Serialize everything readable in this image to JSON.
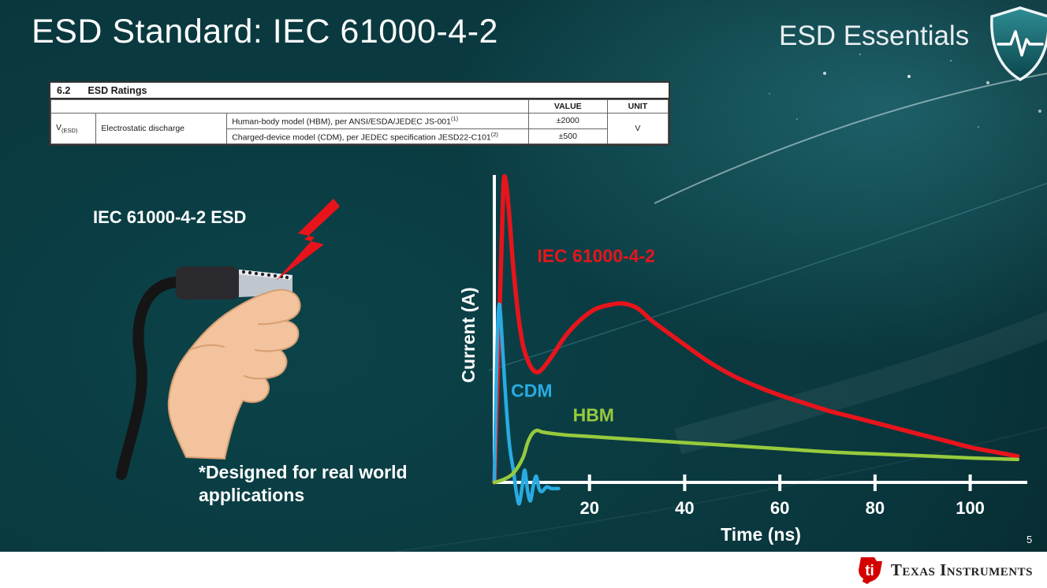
{
  "slide": {
    "title": "ESD Standard: IEC 61000-4-2",
    "brand": "ESD Essentials",
    "illustration_label": "IEC 61000-4-2 ESD",
    "footnote": "*Designed for real world\napplications",
    "page_number": "5"
  },
  "ratings_table": {
    "section_no": "6.2",
    "section_title": "ESD Ratings",
    "headers": {
      "value": "VALUE",
      "unit": "UNIT"
    },
    "param": {
      "symbol": "V",
      "subscript": "(ESD)",
      "name": "Electrostatic discharge"
    },
    "rows": [
      {
        "description": "Human-body model (HBM), per ANSI/ESDA/JEDEC JS-001",
        "superscript": "(1)",
        "value": "±2000"
      },
      {
        "description": "Charged-device model (CDM), per JEDEC specification JESD22-C101",
        "superscript": "(2)",
        "value": "±500"
      }
    ],
    "unit": "V"
  },
  "chart_data": {
    "type": "line",
    "title": "",
    "xlabel": "Time (ns)",
    "ylabel": "Current (A)",
    "xlim": [
      0,
      112
    ],
    "ylim": [
      -8,
      100
    ],
    "xticks": [
      20,
      40,
      60,
      80,
      100
    ],
    "grid": false,
    "legend": "inline-labels",
    "series": [
      {
        "name": "IEC 61000-4-2",
        "color": "#e8141c",
        "x": [
          0,
          1,
          1.8,
          2.2,
          3,
          4,
          5,
          6,
          7,
          8,
          9,
          10,
          12,
          15,
          18,
          21,
          24,
          27,
          30,
          33,
          36,
          40,
          45,
          50,
          55,
          60,
          65,
          70,
          75,
          80,
          85,
          90,
          95,
          100,
          105,
          110
        ],
        "y": [
          0,
          50,
          92,
          100,
          90,
          70,
          55,
          45,
          40,
          37,
          36,
          37,
          41,
          48,
          53,
          56.5,
          58,
          58.5,
          57,
          53,
          49.5,
          45,
          39.5,
          35,
          31.5,
          28.5,
          26,
          23.5,
          21.5,
          19.5,
          17.5,
          15.5,
          13.5,
          11.5,
          10,
          8.5
        ]
      },
      {
        "name": "CDM",
        "color": "#29abe2",
        "x": [
          0,
          0.3,
          0.7,
          1,
          1.3,
          1.8,
          2.5,
          3.2,
          4,
          4.6,
          5.2,
          5.8,
          6.4,
          7,
          7.6,
          8.2,
          8.8,
          9.4,
          10,
          11,
          12,
          13.5
        ],
        "y": [
          0,
          25,
          50,
          58,
          55,
          42,
          25,
          12,
          4,
          -3,
          -7,
          -2,
          4,
          -3,
          -6,
          -1,
          2,
          -2,
          -3,
          -1.5,
          -2,
          -2
        ]
      },
      {
        "name": "HBM",
        "color": "#97ca3d",
        "x": [
          0,
          2,
          4,
          6,
          7,
          8,
          9,
          10,
          12,
          15,
          20,
          30,
          40,
          50,
          60,
          70,
          80,
          90,
          100,
          110
        ],
        "y": [
          0,
          1,
          3,
          8,
          13,
          16,
          17,
          16.5,
          16,
          15.5,
          15,
          14,
          13,
          12,
          11,
          10,
          9.3,
          8.7,
          8,
          7.5
        ]
      }
    ],
    "labels": [
      {
        "text": "IEC 61000-4-2",
        "color": "#e8141c",
        "t": 9,
        "v": 72
      },
      {
        "text": "CDM",
        "color": "#29abe2",
        "t": 3.5,
        "v": 28
      },
      {
        "text": "HBM",
        "color": "#97ca3d",
        "t": 16.5,
        "v": 20
      }
    ]
  },
  "footer": {
    "brand": "Texas Instruments",
    "monogram": "ti"
  },
  "colors": {
    "accent_red": "#e8141c",
    "cdm_blue": "#29abe2",
    "hbm_green": "#97ca3d",
    "background_teal": "#0b4349",
    "footer_bg": "#ffffff",
    "ti_red": "#d40000"
  },
  "icons": {
    "shield_badge": "shield-pulse-icon",
    "lightning": "lightning-bolt-icon",
    "ti_bug": "ti-logo-icon"
  }
}
